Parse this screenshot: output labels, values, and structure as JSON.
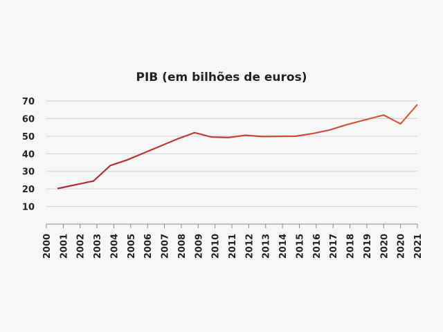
{
  "chart_data": {
    "type": "line",
    "title": "PIB (em bilhões de euros)",
    "xlabel": "",
    "ylabel": "",
    "categories": [
      "2000",
      "2001",
      "2002",
      "2003",
      "2004",
      "2005",
      "2006",
      "2007",
      "2008",
      "2009",
      "2010",
      "2011",
      "2012",
      "2013",
      "2014",
      "2015",
      "2016",
      "2017",
      "2018",
      "2019",
      "2020",
      "2020",
      "2021"
    ],
    "y_ticks": [
      10,
      20,
      30,
      40,
      50,
      60,
      70
    ],
    "ylim": [
      0,
      70
    ],
    "grid": true,
    "series": [
      {
        "name": "PIB",
        "color_start": "#b3262f",
        "color_end": "#d95b3c",
        "values": [
          null,
          20.2,
          22.5,
          24.5,
          33.3,
          36.5,
          40.5,
          44.5,
          48.5,
          52.0,
          49.5,
          49.2,
          50.5,
          49.8,
          49.9,
          50.0,
          51.5,
          53.5,
          56.5,
          59.0,
          62.0,
          57.0,
          68.0
        ]
      }
    ]
  }
}
